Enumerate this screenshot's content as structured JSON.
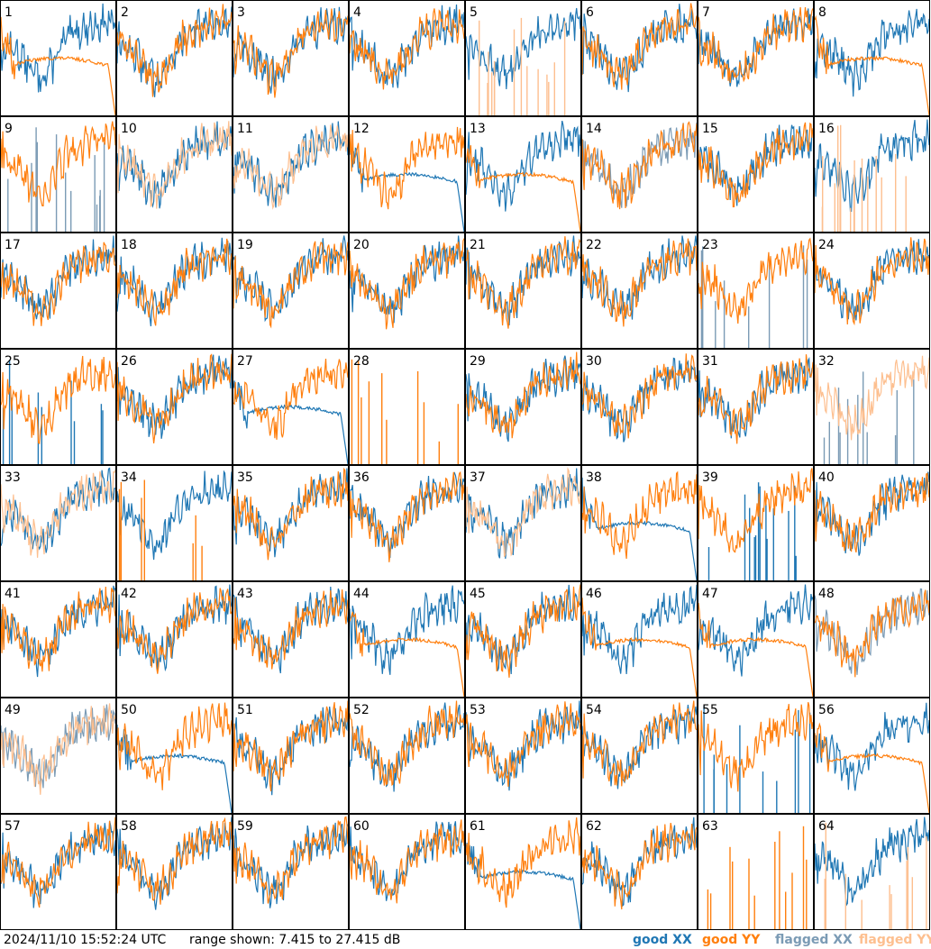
{
  "footer": {
    "timestamp": "2024/11/10 15:52:24 UTC",
    "range_text": "range shown: 7.415 to 27.415 dB"
  },
  "legend": [
    {
      "label": "good XX",
      "color": "#1f77b4"
    },
    {
      "label": "good YY",
      "color": "#ff7f0e"
    },
    {
      "label": "flagged XX",
      "color": "#7b9bb5"
    },
    {
      "label": "flagged YY",
      "color": "#fdbf8f"
    }
  ],
  "chart_data": {
    "type": "line",
    "layout": "8x8 small-multiples grid of per-antenna spectra",
    "y_range_db": [
      7.415,
      27.415
    ],
    "x_axis": "channel (unlabeled)",
    "series_names": [
      "XX",
      "YY"
    ],
    "panels": [
      {
        "id": "1",
        "xx": "good",
        "yy": "good",
        "shape": {
          "xx": "normal",
          "yy": "low_plateau"
        }
      },
      {
        "id": "2",
        "xx": "good",
        "yy": "good",
        "shape": {
          "xx": "normal",
          "yy": "normal"
        }
      },
      {
        "id": "3",
        "xx": "good",
        "yy": "good",
        "shape": {
          "xx": "normal",
          "yy": "normal"
        }
      },
      {
        "id": "4",
        "xx": "good",
        "yy": "good",
        "shape": {
          "xx": "normal",
          "yy": "normal"
        }
      },
      {
        "id": "5",
        "xx": "good",
        "yy": "flagged",
        "shape": {
          "xx": "normal",
          "yy": "spikes"
        }
      },
      {
        "id": "6",
        "xx": "good",
        "yy": "good",
        "shape": {
          "xx": "normal",
          "yy": "normal"
        }
      },
      {
        "id": "7",
        "xx": "good",
        "yy": "good",
        "shape": {
          "xx": "normal",
          "yy": "normal"
        }
      },
      {
        "id": "8",
        "xx": "good",
        "yy": "good",
        "shape": {
          "xx": "normal",
          "yy": "low_plateau"
        }
      },
      {
        "id": "9",
        "xx": "flagged",
        "yy": "good",
        "shape": {
          "xx": "spikes",
          "yy": "normal"
        }
      },
      {
        "id": "10",
        "xx": "good",
        "yy": "flagged",
        "shape": {
          "xx": "normal",
          "yy": "normal"
        }
      },
      {
        "id": "11",
        "xx": "good",
        "yy": "flagged",
        "shape": {
          "xx": "normal",
          "yy": "normal"
        }
      },
      {
        "id": "12",
        "xx": "good",
        "yy": "good",
        "shape": {
          "xx": "low_plateau",
          "yy": "normal"
        }
      },
      {
        "id": "13",
        "xx": "good",
        "yy": "good",
        "shape": {
          "xx": "normal",
          "yy": "low_plateau"
        }
      },
      {
        "id": "14",
        "xx": "flagged",
        "yy": "good",
        "shape": {
          "xx": "normal",
          "yy": "normal"
        }
      },
      {
        "id": "15",
        "xx": "good",
        "yy": "good",
        "shape": {
          "xx": "normal",
          "yy": "normal"
        }
      },
      {
        "id": "16",
        "xx": "good",
        "yy": "flagged",
        "shape": {
          "xx": "normal",
          "yy": "spikes"
        }
      },
      {
        "id": "17",
        "xx": "good",
        "yy": "good",
        "shape": {
          "xx": "normal",
          "yy": "normal"
        }
      },
      {
        "id": "18",
        "xx": "good",
        "yy": "good",
        "shape": {
          "xx": "normal",
          "yy": "normal"
        }
      },
      {
        "id": "19",
        "xx": "good",
        "yy": "good",
        "shape": {
          "xx": "normal",
          "yy": "normal"
        }
      },
      {
        "id": "20",
        "xx": "good",
        "yy": "good",
        "shape": {
          "xx": "normal",
          "yy": "normal"
        }
      },
      {
        "id": "21",
        "xx": "good",
        "yy": "good",
        "shape": {
          "xx": "normal",
          "yy": "normal"
        }
      },
      {
        "id": "22",
        "xx": "good",
        "yy": "good",
        "shape": {
          "xx": "normal",
          "yy": "normal"
        }
      },
      {
        "id": "23",
        "xx": "flagged",
        "yy": "good",
        "shape": {
          "xx": "spikes",
          "yy": "normal"
        }
      },
      {
        "id": "24",
        "xx": "good",
        "yy": "good",
        "shape": {
          "xx": "normal",
          "yy": "normal"
        }
      },
      {
        "id": "25",
        "xx": "good",
        "yy": "good",
        "shape": {
          "xx": "spikes",
          "yy": "normal"
        }
      },
      {
        "id": "26",
        "xx": "good",
        "yy": "good",
        "shape": {
          "xx": "normal",
          "yy": "normal"
        }
      },
      {
        "id": "27",
        "xx": "good",
        "yy": "good",
        "shape": {
          "xx": "low_plateau",
          "yy": "normal"
        }
      },
      {
        "id": "28",
        "xx": "good",
        "yy": "good",
        "shape": {
          "xx": "none",
          "yy": "spikes"
        }
      },
      {
        "id": "29",
        "xx": "good",
        "yy": "good",
        "shape": {
          "xx": "normal",
          "yy": "normal"
        }
      },
      {
        "id": "30",
        "xx": "good",
        "yy": "good",
        "shape": {
          "xx": "normal",
          "yy": "normal"
        }
      },
      {
        "id": "31",
        "xx": "good",
        "yy": "good",
        "shape": {
          "xx": "normal",
          "yy": "normal"
        }
      },
      {
        "id": "32",
        "xx": "flagged",
        "yy": "flagged",
        "shape": {
          "xx": "spikes",
          "yy": "normal"
        }
      },
      {
        "id": "33",
        "xx": "good",
        "yy": "flagged",
        "shape": {
          "xx": "normal",
          "yy": "normal"
        }
      },
      {
        "id": "34",
        "xx": "good",
        "yy": "good",
        "shape": {
          "xx": "normal",
          "yy": "spikes"
        }
      },
      {
        "id": "35",
        "xx": "good",
        "yy": "good",
        "shape": {
          "xx": "normal",
          "yy": "normal"
        }
      },
      {
        "id": "36",
        "xx": "good",
        "yy": "good",
        "shape": {
          "xx": "normal",
          "yy": "normal"
        }
      },
      {
        "id": "37",
        "xx": "good",
        "yy": "flagged",
        "shape": {
          "xx": "normal",
          "yy": "normal"
        }
      },
      {
        "id": "38",
        "xx": "good",
        "yy": "good",
        "shape": {
          "xx": "low_plateau",
          "yy": "normal"
        }
      },
      {
        "id": "39",
        "xx": "good",
        "yy": "good",
        "shape": {
          "xx": "spikes",
          "yy": "normal"
        }
      },
      {
        "id": "40",
        "xx": "good",
        "yy": "good",
        "shape": {
          "xx": "normal",
          "yy": "normal"
        }
      },
      {
        "id": "41",
        "xx": "good",
        "yy": "good",
        "shape": {
          "xx": "normal",
          "yy": "normal"
        }
      },
      {
        "id": "42",
        "xx": "good",
        "yy": "good",
        "shape": {
          "xx": "normal",
          "yy": "normal"
        }
      },
      {
        "id": "43",
        "xx": "good",
        "yy": "good",
        "shape": {
          "xx": "normal",
          "yy": "normal"
        }
      },
      {
        "id": "44",
        "xx": "good",
        "yy": "good",
        "shape": {
          "xx": "normal",
          "yy": "low_plateau"
        }
      },
      {
        "id": "45",
        "xx": "good",
        "yy": "good",
        "shape": {
          "xx": "normal",
          "yy": "normal"
        }
      },
      {
        "id": "46",
        "xx": "good",
        "yy": "good",
        "shape": {
          "xx": "normal",
          "yy": "low_plateau"
        }
      },
      {
        "id": "47",
        "xx": "good",
        "yy": "good",
        "shape": {
          "xx": "normal",
          "yy": "low_plateau"
        }
      },
      {
        "id": "48",
        "xx": "flagged",
        "yy": "good",
        "shape": {
          "xx": "normal",
          "yy": "normal"
        }
      },
      {
        "id": "49",
        "xx": "flagged",
        "yy": "flagged",
        "shape": {
          "xx": "normal",
          "yy": "normal"
        }
      },
      {
        "id": "50",
        "xx": "good",
        "yy": "good",
        "shape": {
          "xx": "low_plateau",
          "yy": "normal"
        }
      },
      {
        "id": "51",
        "xx": "good",
        "yy": "good",
        "shape": {
          "xx": "normal",
          "yy": "normal"
        }
      },
      {
        "id": "52",
        "xx": "good",
        "yy": "good",
        "shape": {
          "xx": "normal",
          "yy": "normal"
        }
      },
      {
        "id": "53",
        "xx": "good",
        "yy": "good",
        "shape": {
          "xx": "normal",
          "yy": "normal"
        }
      },
      {
        "id": "54",
        "xx": "good",
        "yy": "good",
        "shape": {
          "xx": "normal",
          "yy": "normal"
        }
      },
      {
        "id": "55",
        "xx": "good",
        "yy": "good",
        "shape": {
          "xx": "spikes",
          "yy": "normal"
        }
      },
      {
        "id": "56",
        "xx": "good",
        "yy": "good",
        "shape": {
          "xx": "normal",
          "yy": "low_plateau"
        }
      },
      {
        "id": "57",
        "xx": "good",
        "yy": "good",
        "shape": {
          "xx": "normal",
          "yy": "normal"
        }
      },
      {
        "id": "58",
        "xx": "good",
        "yy": "good",
        "shape": {
          "xx": "normal",
          "yy": "normal"
        }
      },
      {
        "id": "59",
        "xx": "good",
        "yy": "good",
        "shape": {
          "xx": "normal",
          "yy": "normal"
        }
      },
      {
        "id": "60",
        "xx": "good",
        "yy": "good",
        "shape": {
          "xx": "normal",
          "yy": "normal"
        }
      },
      {
        "id": "61",
        "xx": "good",
        "yy": "good",
        "shape": {
          "xx": "low_plateau",
          "yy": "normal"
        }
      },
      {
        "id": "62",
        "xx": "good",
        "yy": "good",
        "shape": {
          "xx": "normal",
          "yy": "normal"
        }
      },
      {
        "id": "63",
        "xx": "good",
        "yy": "good",
        "shape": {
          "xx": "none",
          "yy": "spikes"
        }
      },
      {
        "id": "64",
        "xx": "good",
        "yy": "flagged",
        "shape": {
          "xx": "normal",
          "yy": "spikes"
        }
      }
    ]
  }
}
